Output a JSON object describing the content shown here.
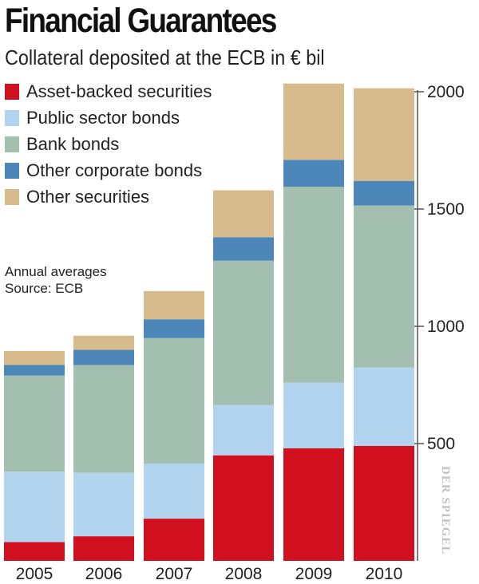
{
  "title": "Financial Guarantees",
  "subtitle": "Collateral deposited at the ECB in € bil",
  "notes": [
    "Annual averages",
    "Source: ECB"
  ],
  "credit": "DER SPIEGEL",
  "chart_data": {
    "type": "bar",
    "stacked": true,
    "categories": [
      "2005",
      "2006",
      "2007",
      "2008",
      "2009",
      "2010"
    ],
    "series": [
      {
        "name": "Asset-backed securities",
        "color": "#d0101f",
        "values": [
          80,
          105,
          180,
          450,
          480,
          490
        ]
      },
      {
        "name": "Public sector bonds",
        "color": "#b3d4ee",
        "values": [
          300,
          270,
          235,
          215,
          280,
          335
        ]
      },
      {
        "name": "Bank bonds",
        "color": "#a3bfb0",
        "values": [
          410,
          460,
          535,
          615,
          835,
          690
        ]
      },
      {
        "name": "Other corporate bonds",
        "color": "#4d86b9",
        "values": [
          45,
          65,
          80,
          100,
          115,
          105
        ]
      },
      {
        "name": "Other securities",
        "color": "#d7bb8d",
        "values": [
          60,
          60,
          120,
          200,
          325,
          395
        ]
      }
    ],
    "yticks": [
      500,
      1000,
      1500,
      2000
    ],
    "ylim": [
      0,
      2000
    ],
    "axis_position": "right",
    "legend_position": "top-left",
    "grid": false
  }
}
